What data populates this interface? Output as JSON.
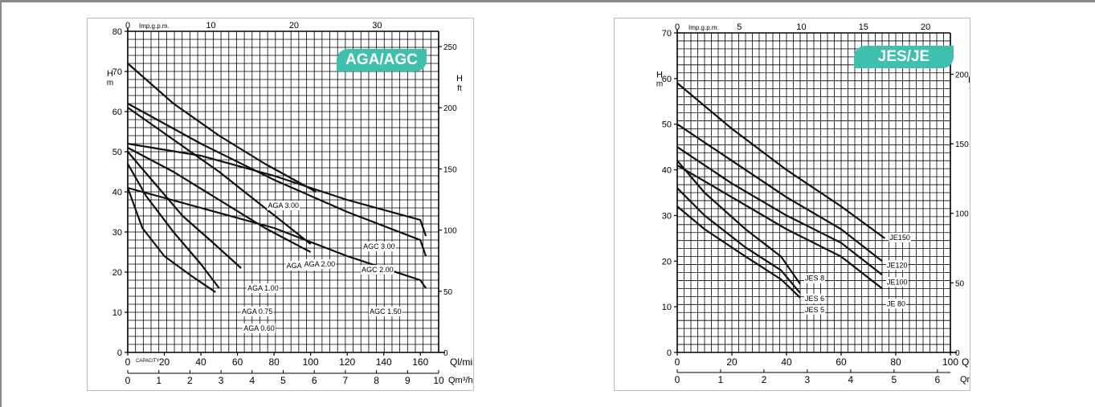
{
  "chart_data": [
    {
      "type": "line",
      "badge": "AGA/AGC",
      "x_axis_primary": {
        "label": "Ql/min",
        "ticks": [
          0,
          20,
          40,
          60,
          80,
          100,
          120,
          140,
          160
        ],
        "range": [
          0,
          170
        ],
        "first_label": "CAPACITY"
      },
      "x_axis_secondary": {
        "label": "Qm³/h",
        "ticks": [
          "0",
          "1",
          "2",
          "3",
          "4",
          "5",
          "6",
          "7",
          "8",
          "9",
          "10"
        ]
      },
      "x_axis_top": {
        "label": "Imp.g.p.m.",
        "ticks": [
          "0",
          "10",
          "20",
          "30"
        ]
      },
      "y_axis_left": {
        "label": "H",
        "unit": "m",
        "ticks": [
          0,
          10,
          20,
          30,
          40,
          50,
          60,
          70,
          80
        ],
        "range": [
          0,
          80
        ]
      },
      "y_axis_right": {
        "label": "H",
        "unit": "ft",
        "ticks": [
          "0",
          "50",
          "100",
          "150",
          "200",
          "250"
        ]
      },
      "series": [
        {
          "name": "AGA 0.60",
          "x": [
            0,
            8,
            20,
            35,
            48
          ],
          "y": [
            41,
            31,
            24,
            19,
            15
          ]
        },
        {
          "name": "AGA 0.75",
          "x": [
            0,
            10,
            25,
            40,
            50
          ],
          "y": [
            47,
            39,
            30,
            22,
            16
          ]
        },
        {
          "name": "AGA 1.00",
          "x": [
            0,
            15,
            30,
            45,
            62
          ],
          "y": [
            50,
            42,
            34,
            28,
            21
          ]
        },
        {
          "name": "AGA 1.50",
          "x": [
            0,
            25,
            50,
            75,
            100
          ],
          "y": [
            51,
            45,
            38,
            31,
            25
          ]
        },
        {
          "name": "AGA 2.00",
          "x": [
            0,
            25,
            50,
            75,
            100
          ],
          "y": [
            61,
            53,
            45,
            36,
            27
          ]
        },
        {
          "name": "AGA 3.00",
          "x": [
            0,
            25,
            50,
            75,
            103
          ],
          "y": [
            72,
            62,
            54,
            47,
            40
          ]
        },
        {
          "name": "AGC 1.50",
          "x": [
            0,
            40,
            80,
            120,
            160,
            163
          ],
          "y": [
            41,
            36,
            31,
            24,
            18,
            16
          ]
        },
        {
          "name": "AGC 2.00",
          "x": [
            0,
            40,
            80,
            120,
            160,
            163
          ],
          "y": [
            62,
            52,
            43,
            35,
            28,
            24
          ]
        },
        {
          "name": "AGC 3.00",
          "x": [
            0,
            40,
            80,
            120,
            160,
            163
          ],
          "y": [
            52,
            49,
            44,
            38,
            33,
            29
          ]
        }
      ]
    },
    {
      "type": "line",
      "badge": "JES/JE",
      "x_axis_primary": {
        "label": "Ql/min",
        "ticks": [
          0,
          20,
          40,
          60,
          80,
          100
        ],
        "range": [
          0,
          100
        ]
      },
      "x_axis_secondary": {
        "label": "Qm³/h",
        "ticks": [
          "0",
          "1",
          "2",
          "3",
          "4",
          "5",
          "6"
        ]
      },
      "x_axis_top": {
        "label": "Imp.g.p.m.",
        "ticks": [
          "0",
          "5",
          "10",
          "15",
          "20"
        ]
      },
      "y_axis_left": {
        "label": "H",
        "unit": "m",
        "ticks": [
          0,
          10,
          20,
          30,
          40,
          50,
          60,
          70
        ],
        "range": [
          0,
          70
        ]
      },
      "y_axis_right": {
        "label": "H",
        "unit": "ft",
        "ticks": [
          "0",
          "50",
          "100",
          "150",
          "200"
        ]
      },
      "series": [
        {
          "name": "JES 5",
          "x": [
            0,
            10,
            25,
            38,
            45
          ],
          "y": [
            32,
            27,
            21,
            16,
            12
          ]
        },
        {
          "name": "JES 6",
          "x": [
            0,
            10,
            25,
            38,
            45
          ],
          "y": [
            36,
            30,
            23,
            18,
            13
          ]
        },
        {
          "name": "JES 8",
          "x": [
            0,
            10,
            25,
            38,
            45
          ],
          "y": [
            42,
            35,
            27,
            21,
            15
          ]
        },
        {
          "name": "JE 80",
          "x": [
            0,
            20,
            40,
            60,
            75
          ],
          "y": [
            41,
            34,
            27,
            21,
            14
          ]
        },
        {
          "name": "JE100",
          "x": [
            0,
            20,
            40,
            60,
            75
          ],
          "y": [
            45,
            37,
            30,
            24,
            17
          ]
        },
        {
          "name": "JE120",
          "x": [
            0,
            20,
            40,
            60,
            75
          ],
          "y": [
            50,
            42,
            34,
            27,
            20
          ]
        },
        {
          "name": "JE150",
          "x": [
            0,
            20,
            40,
            60,
            76
          ],
          "y": [
            59,
            49,
            40,
            32,
            25
          ]
        }
      ]
    }
  ]
}
